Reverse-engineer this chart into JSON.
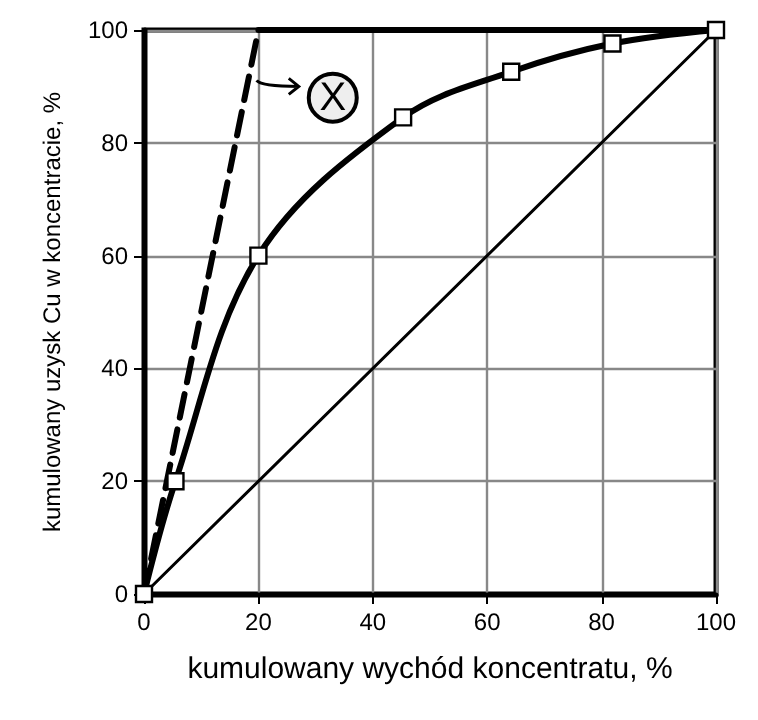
{
  "chart_data": {
    "type": "line",
    "xlabel": "kumulowany wychód koncentratu, %",
    "ylabel": "kumulowany uzysk Cu w koncentracie, %",
    "xlim": [
      0,
      100
    ],
    "xticks": [
      0,
      20,
      40,
      60,
      80,
      100
    ],
    "ylim": [
      0,
      100
    ],
    "yticks": [
      0,
      20,
      40,
      60,
      80,
      100
    ],
    "grid": true,
    "annotations": [
      "X"
    ],
    "series": [
      {
        "color": "#000000",
        "x": [
          0,
          5.5,
          20,
          45.3,
          64.2,
          81.9,
          100
        ],
        "values": [
          0,
          20,
          60,
          84.5,
          92.6,
          97.6,
          100
        ],
        "marker": "square",
        "line_style": "solid"
      },
      {
        "color": "#000000",
        "x": [
          0,
          20
        ],
        "values": [
          0,
          100
        ],
        "marker": "none",
        "line_style": "dashed"
      },
      {
        "color": "#000000",
        "x": [
          20,
          100
        ],
        "values": [
          100,
          100
        ],
        "marker": "none",
        "line_style": "solid"
      },
      {
        "color": "#000000",
        "x": [
          0,
          100
        ],
        "values": [
          0,
          100
        ],
        "marker": "none",
        "line_style": "solid"
      }
    ]
  }
}
